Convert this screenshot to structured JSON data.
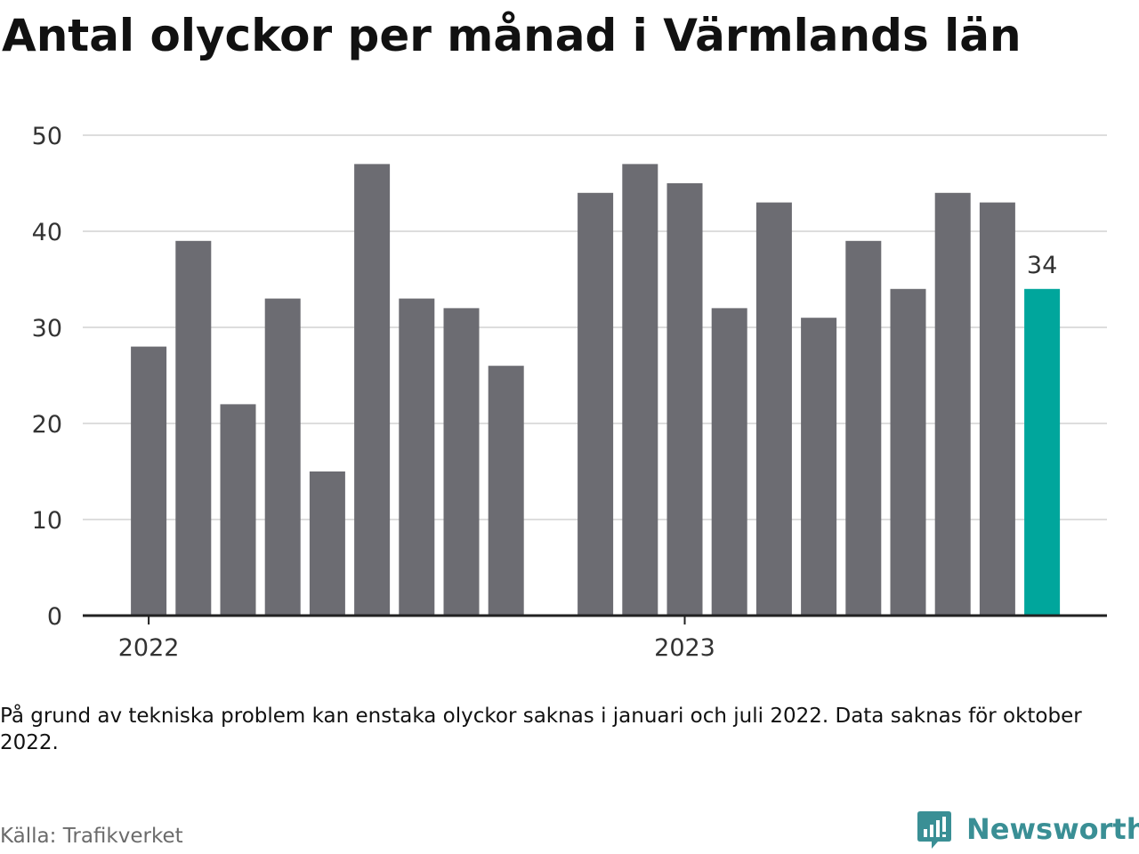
{
  "title": "Antal olyckor per månad i Värmlands län",
  "note": "På grund av tekniska problem kan enstaka olyckor saknas i januari och juli 2022. Data saknas för oktober 2022.",
  "source": "Källa: Trafikverket",
  "brand": {
    "name": "Newsworthy",
    "icon": "newsworthy-chart-bubble-icon"
  },
  "colors": {
    "bar": "#6c6c72",
    "highlight": "#00a69c",
    "grid": "#dddddd",
    "axis": "#222222",
    "brand": "#3a8f95"
  },
  "chart_data": {
    "type": "bar",
    "x_tick_labels": [
      "2022",
      "2023"
    ],
    "y_ticks": [
      0,
      10,
      20,
      30,
      40,
      50
    ],
    "ylim": [
      0,
      50
    ],
    "grid": true,
    "highlight_label": "34",
    "series": [
      {
        "values": [
          28,
          39,
          22,
          33,
          15,
          47,
          33,
          32,
          26,
          null,
          44,
          47,
          45,
          32,
          43,
          31,
          39,
          34,
          44,
          43,
          34
        ],
        "highlight_last": true
      }
    ]
  }
}
